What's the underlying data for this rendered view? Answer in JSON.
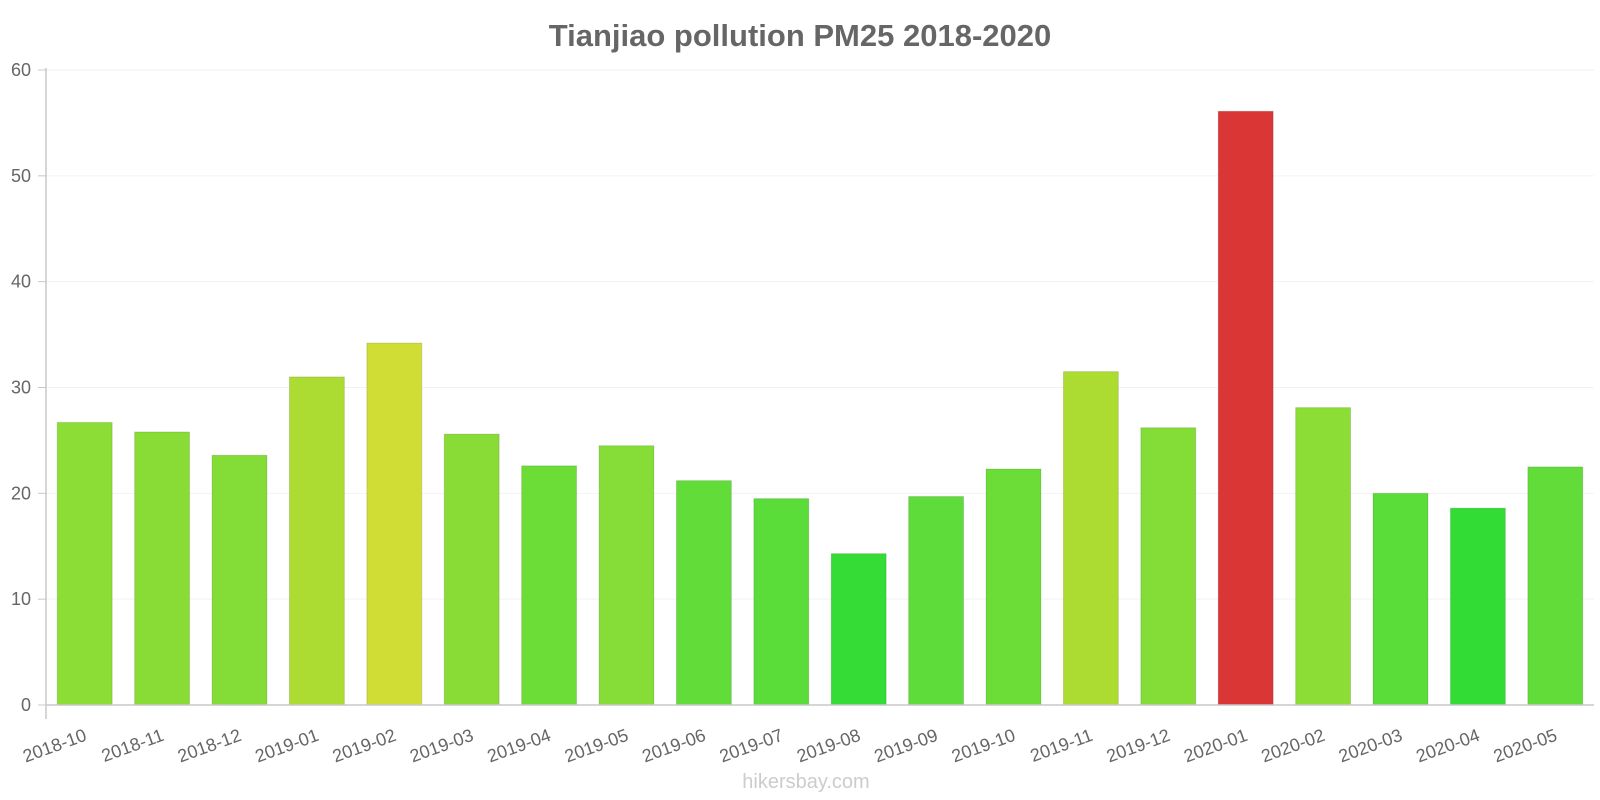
{
  "watermark": "hikersbay.com",
  "chart_data": {
    "type": "bar",
    "title": "Tianjiao pollution PM25 2018-2020",
    "xlabel": "",
    "ylabel": "",
    "ylim": [
      0,
      60
    ],
    "yticks": [
      "0",
      "10",
      "20",
      "30",
      "40",
      "50",
      "60"
    ],
    "grid": true,
    "legend": "none",
    "categories": [
      "2018-10",
      "2018-11",
      "2018-12",
      "2019-01",
      "2019-02",
      "2019-03",
      "2019-04",
      "2019-05",
      "2019-06",
      "2019-07",
      "2019-08",
      "2019-09",
      "2019-10",
      "2019-11",
      "2019-12",
      "2020-01",
      "2020-02",
      "2020-03",
      "2020-04",
      "2020-05"
    ],
    "values": [
      26.7,
      25.8,
      23.6,
      31.0,
      34.2,
      25.6,
      22.6,
      24.5,
      21.2,
      19.5,
      14.3,
      19.7,
      22.3,
      31.5,
      26.2,
      56.1,
      28.1,
      20.0,
      18.6,
      22.5
    ],
    "colors": [
      "#8cdd35",
      "#89dc36",
      "#84dc36",
      "#acdc32",
      "#cfdd35",
      "#89dc36",
      "#6bdd36",
      "#86dd37",
      "#61dc38",
      "#5adc39",
      "#34dc35",
      "#5edc39",
      "#6cdd37",
      "#acdc32",
      "#84dc36",
      "#db3636",
      "#8cdd35",
      "#5adc39",
      "#33dc35",
      "#61dc38"
    ]
  }
}
